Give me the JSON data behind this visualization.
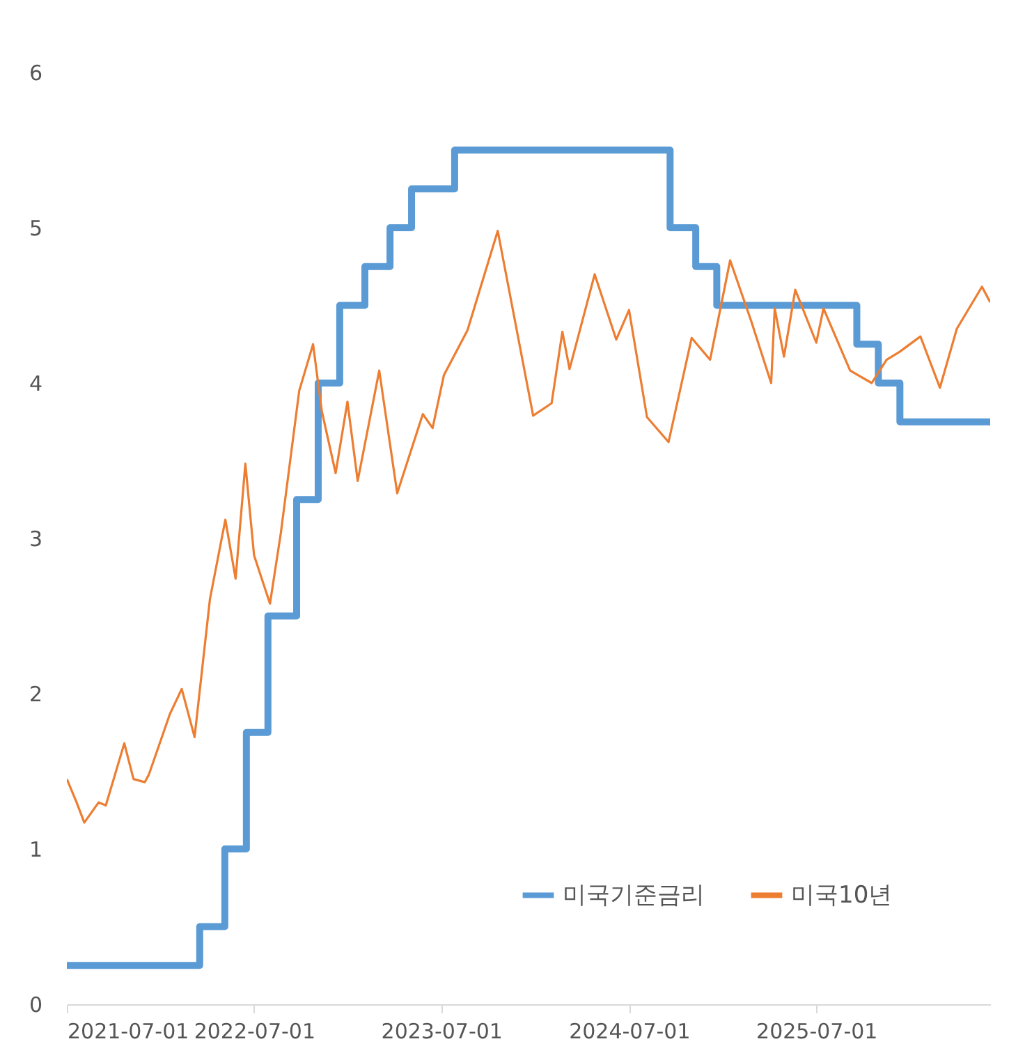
{
  "chart_data": {
    "type": "line",
    "xlim": [
      "2021-07-01",
      "2026-06-05"
    ],
    "xticks": [
      "2021-07-01",
      "2022-07-01",
      "2023-07-01",
      "2024-07-01",
      "2025-07-01"
    ],
    "ylim": [
      0,
      6
    ],
    "yticks": [
      0,
      1,
      2,
      3,
      4,
      5,
      6
    ],
    "grid": false,
    "legend": "bottom right",
    "series": [
      {
        "name": "미국기준금리",
        "type": "step",
        "color": "#5b9bd5",
        "x": [
          "2021-07-01",
          "2022-03-17",
          "2022-05-05",
          "2022-06-16",
          "2022-07-28",
          "2022-09-22",
          "2022-11-03",
          "2022-12-15",
          "2023-02-02",
          "2023-03-23",
          "2023-05-04",
          "2023-07-27",
          "2024-09-19",
          "2024-11-08",
          "2024-12-19",
          "2025-09-18",
          "2025-10-30",
          "2025-12-11",
          "2026-06-05"
        ],
        "values": [
          0.25,
          0.5,
          1.0,
          1.75,
          2.5,
          3.25,
          4.0,
          4.5,
          4.75,
          5.0,
          5.25,
          5.5,
          5.0,
          4.75,
          4.5,
          4.25,
          4.0,
          3.75,
          3.75
        ]
      },
      {
        "name": "미국10년",
        "type": "line",
        "color": "#ed7d31",
        "x": [
          "2021-07-01",
          "2021-07-20",
          "2021-08-04",
          "2021-09-01",
          "2021-09-15",
          "2021-10-21",
          "2021-11-08",
          "2021-11-30",
          "2021-12-08",
          "2022-01-18",
          "2022-02-10",
          "2022-03-07",
          "2022-04-06",
          "2022-05-06",
          "2022-05-26",
          "2022-06-14",
          "2022-07-01",
          "2022-08-01",
          "2022-08-22",
          "2022-09-27",
          "2022-10-24",
          "2022-11-10",
          "2022-12-07",
          "2022-12-30",
          "2023-01-19",
          "2023-03-02",
          "2023-04-06",
          "2023-05-26",
          "2023-06-14",
          "2023-07-06",
          "2023-08-21",
          "2023-10-19",
          "2023-12-27",
          "2024-02-01",
          "2024-02-22",
          "2024-03-07",
          "2024-04-25",
          "2024-06-06",
          "2024-07-01",
          "2024-08-05",
          "2024-09-16",
          "2024-10-31",
          "2024-12-06",
          "2025-01-14",
          "2025-02-24",
          "2025-04-04",
          "2025-04-11",
          "2025-04-29",
          "2025-05-21",
          "2025-07-01",
          "2025-07-15",
          "2025-09-05",
          "2025-10-17",
          "2025-11-15",
          "2025-12-10",
          "2026-01-20",
          "2026-02-27",
          "2026-04-01",
          "2026-05-20",
          "2026-06-05"
        ],
        "values": [
          1.45,
          1.3,
          1.17,
          1.3,
          1.28,
          1.68,
          1.45,
          1.43,
          1.48,
          1.87,
          2.03,
          1.72,
          2.61,
          3.12,
          2.74,
          3.48,
          2.89,
          2.58,
          3.03,
          3.95,
          4.25,
          3.82,
          3.42,
          3.88,
          3.37,
          4.08,
          3.29,
          3.8,
          3.71,
          4.05,
          4.34,
          4.98,
          3.79,
          3.87,
          4.33,
          4.09,
          4.7,
          4.28,
          4.47,
          3.78,
          3.62,
          4.29,
          4.15,
          4.79,
          4.4,
          4.0,
          4.48,
          4.17,
          4.6,
          4.26,
          4.48,
          4.08,
          4.0,
          4.15,
          4.2,
          4.3,
          3.97,
          4.35,
          4.62,
          4.52
        ]
      }
    ]
  }
}
